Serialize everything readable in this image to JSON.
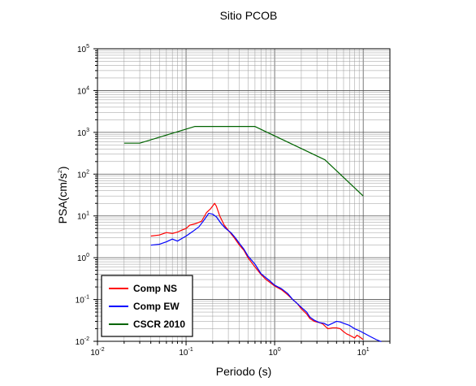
{
  "chart_data": {
    "type": "line",
    "title": "Sitio PCOB",
    "xlabel": "Periodo (s)",
    "ylabel_main": "PSA(cm/s",
    "ylabel_sup": "2",
    "ylabel_tail": ")",
    "xscale": "log",
    "yscale": "log",
    "xlim": [
      0.01,
      20
    ],
    "ylim": [
      0.01,
      100000
    ],
    "grid": true,
    "legend_position": "bottom-left",
    "x_ticks": [
      {
        "value": 0.01,
        "base": "10",
        "exp": "-2"
      },
      {
        "value": 0.1,
        "base": "10",
        "exp": "-1"
      },
      {
        "value": 1,
        "base": "10",
        "exp": "0"
      },
      {
        "value": 10,
        "base": "10",
        "exp": "1"
      }
    ],
    "y_ticks": [
      {
        "value": 0.01,
        "base": "10",
        "exp": "-2"
      },
      {
        "value": 0.1,
        "base": "10",
        "exp": "-1"
      },
      {
        "value": 1,
        "base": "10",
        "exp": "0"
      },
      {
        "value": 10,
        "base": "10",
        "exp": "1"
      },
      {
        "value": 100,
        "base": "10",
        "exp": "2"
      },
      {
        "value": 1000,
        "base": "10",
        "exp": "3"
      },
      {
        "value": 10000,
        "base": "10",
        "exp": "4"
      },
      {
        "value": 100000,
        "base": "10",
        "exp": "5"
      }
    ],
    "series": [
      {
        "name": "Comp NS",
        "color": "#ff0000",
        "points": [
          [
            0.04,
            3.3
          ],
          [
            0.05,
            3.5
          ],
          [
            0.06,
            4.0
          ],
          [
            0.07,
            3.8
          ],
          [
            0.08,
            4.1
          ],
          [
            0.09,
            4.6
          ],
          [
            0.1,
            5.0
          ],
          [
            0.11,
            6.0
          ],
          [
            0.13,
            6.6
          ],
          [
            0.15,
            7.5
          ],
          [
            0.17,
            12.0
          ],
          [
            0.19,
            15.0
          ],
          [
            0.21,
            20.0
          ],
          [
            0.22,
            17.0
          ],
          [
            0.24,
            10.0
          ],
          [
            0.27,
            6.0
          ],
          [
            0.3,
            4.5
          ],
          [
            0.35,
            3.0
          ],
          [
            0.4,
            2.0
          ],
          [
            0.45,
            1.5
          ],
          [
            0.5,
            1.0
          ],
          [
            0.6,
            0.6
          ],
          [
            0.7,
            0.4
          ],
          [
            0.8,
            0.3
          ],
          [
            0.9,
            0.25
          ],
          [
            1.0,
            0.21
          ],
          [
            1.2,
            0.17
          ],
          [
            1.4,
            0.13
          ],
          [
            1.6,
            0.1
          ],
          [
            1.8,
            0.08
          ],
          [
            2.0,
            0.06
          ],
          [
            2.3,
            0.045
          ],
          [
            2.5,
            0.035
          ],
          [
            2.8,
            0.03
          ],
          [
            3.2,
            0.028
          ],
          [
            3.5,
            0.026
          ],
          [
            3.8,
            0.022
          ],
          [
            4.0,
            0.02
          ],
          [
            4.5,
            0.021
          ],
          [
            5.0,
            0.021
          ],
          [
            5.5,
            0.02
          ],
          [
            6.0,
            0.017
          ],
          [
            6.5,
            0.015
          ],
          [
            7.0,
            0.014
          ],
          [
            8.0,
            0.012
          ],
          [
            8.5,
            0.014
          ],
          [
            9.0,
            0.013
          ],
          [
            10.0,
            0.011
          ]
        ]
      },
      {
        "name": "Comp EW",
        "color": "#0000ff",
        "points": [
          [
            0.04,
            2.0
          ],
          [
            0.05,
            2.1
          ],
          [
            0.06,
            2.4
          ],
          [
            0.07,
            2.8
          ],
          [
            0.08,
            2.5
          ],
          [
            0.09,
            2.9
          ],
          [
            0.1,
            3.3
          ],
          [
            0.11,
            3.8
          ],
          [
            0.12,
            4.3
          ],
          [
            0.14,
            5.5
          ],
          [
            0.16,
            8.0
          ],
          [
            0.18,
            11.5
          ],
          [
            0.2,
            11.0
          ],
          [
            0.22,
            9.5
          ],
          [
            0.25,
            6.5
          ],
          [
            0.28,
            5.0
          ],
          [
            0.32,
            4.0
          ],
          [
            0.36,
            3.0
          ],
          [
            0.4,
            2.2
          ],
          [
            0.45,
            1.6
          ],
          [
            0.5,
            1.1
          ],
          [
            0.6,
            0.7
          ],
          [
            0.7,
            0.42
          ],
          [
            0.8,
            0.33
          ],
          [
            0.9,
            0.27
          ],
          [
            1.0,
            0.22
          ],
          [
            1.2,
            0.18
          ],
          [
            1.4,
            0.14
          ],
          [
            1.6,
            0.1
          ],
          [
            1.8,
            0.08
          ],
          [
            2.0,
            0.065
          ],
          [
            2.3,
            0.05
          ],
          [
            2.5,
            0.038
          ],
          [
            2.8,
            0.032
          ],
          [
            3.2,
            0.028
          ],
          [
            3.6,
            0.027
          ],
          [
            4.0,
            0.024
          ],
          [
            4.5,
            0.027
          ],
          [
            5.0,
            0.03
          ],
          [
            5.5,
            0.029
          ],
          [
            6.0,
            0.027
          ],
          [
            7.0,
            0.024
          ],
          [
            8.0,
            0.02
          ],
          [
            9.0,
            0.018
          ],
          [
            10.0,
            0.016
          ],
          [
            12.0,
            0.013
          ],
          [
            14.0,
            0.011
          ],
          [
            16.0,
            0.0098
          ]
        ]
      },
      {
        "name": "CSCR 2010",
        "color": "#006400",
        "points": [
          [
            0.02,
            550
          ],
          [
            0.03,
            550
          ],
          [
            0.125,
            1380
          ],
          [
            0.6,
            1380
          ],
          [
            3.7,
            220
          ],
          [
            10.0,
            30
          ]
        ]
      }
    ]
  }
}
